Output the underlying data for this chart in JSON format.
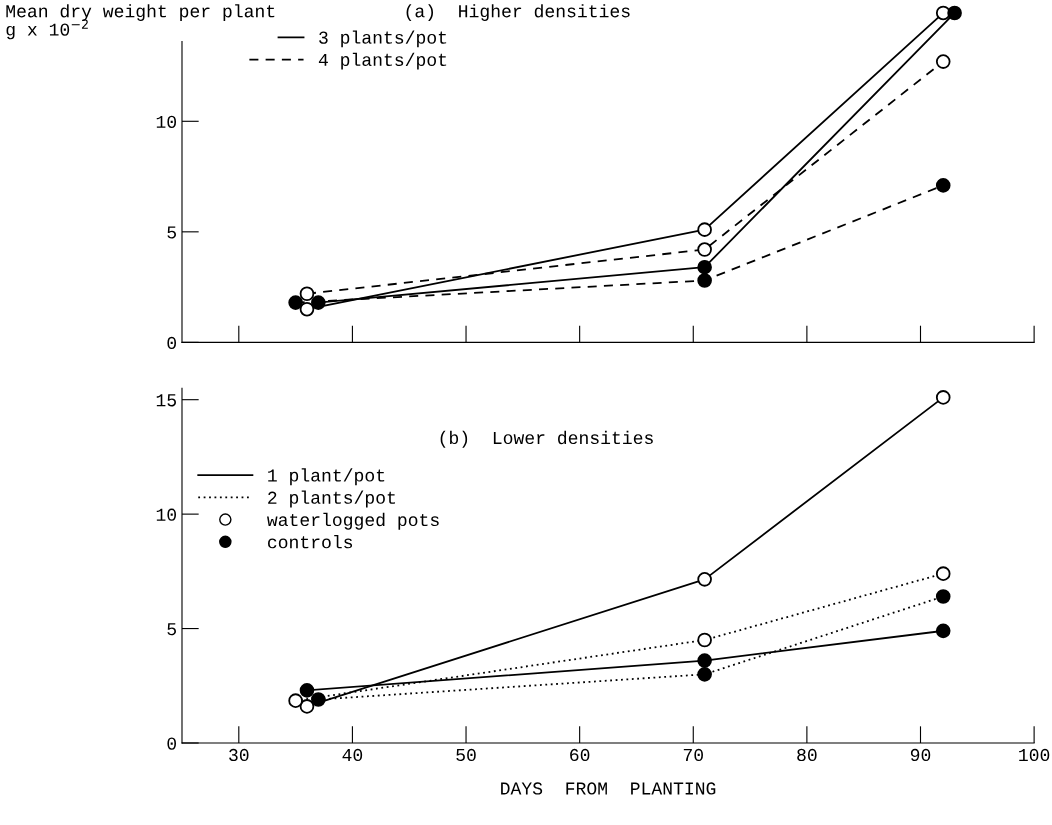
{
  "chart_data": [
    {
      "type": "line",
      "title": "(a)  Higher densities",
      "ylabel": "Mean dry weight per plant\ng x 10$^{−2}$",
      "xlim": [
        25,
        100
      ],
      "ylim": [
        0,
        15.3
      ],
      "xticks": [
        {
          "value": 30,
          "label": null
        },
        {
          "value": 40,
          "label": null
        },
        {
          "value": 50,
          "label": null
        },
        {
          "value": 60,
          "label": null
        },
        {
          "value": 70,
          "label": null
        },
        {
          "value": 80,
          "label": null
        },
        {
          "value": 90,
          "label": null
        },
        {
          "value": 100,
          "label": null
        }
      ],
      "yticks": [
        0,
        5,
        10
      ],
      "tick_labels": "y",
      "grid": false,
      "legend": "top left",
      "marker": "circle",
      "series": [
        {
          "name": "3 plants/pot",
          "color": "#000000",
          "colors": [
            "#ffffff",
            "#ffffff",
            "#ffffff"
          ],
          "line_style": "solid",
          "x": [
            36,
            71,
            92
          ],
          "values": [
            1.5,
            5.1,
            14.9
          ]
        },
        {
          "color": "#000000",
          "colors": [
            "#000000",
            "#000000",
            "#000000"
          ],
          "line_style": "solid",
          "x": [
            37,
            71,
            93
          ],
          "values": [
            1.8,
            3.4,
            14.9
          ]
        },
        {
          "name": "4 plants/pot",
          "color": "#000000",
          "colors": [
            "#ffffff",
            "#ffffff",
            "#ffffff"
          ],
          "line_style": "dashed",
          "x": [
            36,
            71,
            92
          ],
          "values": [
            2.2,
            4.2,
            12.7
          ]
        },
        {
          "color": "#000000",
          "colors": [
            "#000000",
            "#000000",
            "#000000"
          ],
          "line_style": "dashed",
          "x": [
            35,
            71,
            92
          ],
          "values": [
            1.8,
            2.8,
            7.1
          ]
        }
      ]
    },
    {
      "type": "line",
      "title": "(b)  Lower densities",
      "xlabel": "DAYS  FROM  PLANTING",
      "xlim": [
        25,
        100
      ],
      "ylim": [
        0,
        15.5
      ],
      "xticks": [
        30,
        40,
        50,
        60,
        70,
        80,
        90,
        100
      ],
      "yticks": [
        0,
        5,
        10,
        15
      ],
      "grid": false,
      "legend": "top left",
      "marker": "circle",
      "annotations": [
        "waterlogged pots",
        "controls"
      ],
      "series": [
        {
          "name": "1 plant/pot",
          "color": "#000000",
          "colors": [
            "#ffffff",
            "#ffffff",
            "#ffffff"
          ],
          "line_style": "solid",
          "x": [
            36,
            71,
            92
          ],
          "values": [
            1.6,
            7.15,
            15.1
          ]
        },
        {
          "color": "#000000",
          "colors": [
            "#000000",
            "#000000",
            "#000000"
          ],
          "line_style": "solid",
          "x": [
            36,
            71,
            92
          ],
          "values": [
            2.3,
            3.6,
            4.9
          ]
        },
        {
          "name": "2 plants/pot",
          "color": "#000000",
          "colors": [
            "#ffffff",
            "#ffffff",
            "#ffffff"
          ],
          "line_style": "dotted",
          "x": [
            35,
            71,
            92
          ],
          "values": [
            1.85,
            4.5,
            7.4
          ]
        },
        {
          "color": "#000000",
          "colors": [
            "#000000",
            "#000000",
            "#000000"
          ],
          "line_style": "dotted",
          "x": [
            37,
            71,
            92
          ],
          "values": [
            1.9,
            3.0,
            6.4
          ]
        }
      ]
    }
  ]
}
